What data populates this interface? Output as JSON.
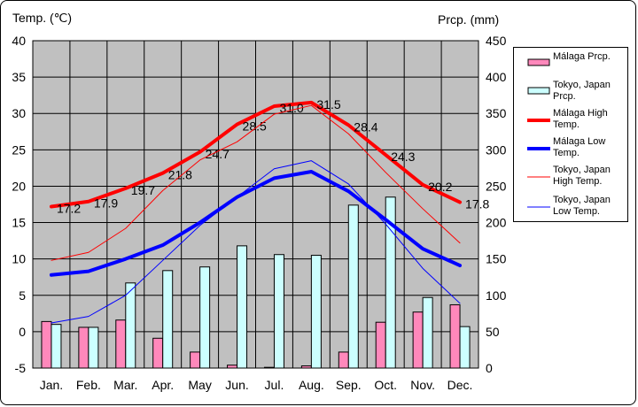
{
  "chart_data": {
    "type": "bar+line",
    "left_axis_title": "Temp. (℃)",
    "right_axis_title": "Prcp. (mm)",
    "categories": [
      "Jan.",
      "Feb.",
      "Mar.",
      "Apr.",
      "May",
      "Jun.",
      "Jul.",
      "Aug.",
      "Sep.",
      "Oct.",
      "Nov.",
      "Dec."
    ],
    "temp_axis": {
      "min": -5,
      "max": 40,
      "ticks": [
        40,
        35,
        30,
        25,
        20,
        15,
        10,
        5,
        0,
        -5
      ]
    },
    "prcp_axis": {
      "min": 0,
      "max": 450,
      "ticks": [
        450,
        400,
        350,
        300,
        250,
        200,
        150,
        100,
        50,
        0
      ]
    },
    "grid": true,
    "bar_series": [
      {
        "name": "Málaga Prcp.",
        "color": "#ff88bb",
        "values": [
          64,
          56,
          66,
          41,
          22,
          4,
          1,
          3,
          22,
          63,
          77,
          87
        ]
      },
      {
        "name": "Tokyo, Japan Prcp.",
        "color": "#ccffff",
        "values": [
          60,
          56,
          117,
          134,
          139,
          168,
          156,
          155,
          224,
          235,
          97,
          57
        ]
      }
    ],
    "line_series": [
      {
        "name": "Málaga High Temp.",
        "color": "#ff0000",
        "width": 4,
        "labels": true,
        "values": [
          17.2,
          17.9,
          19.7,
          21.8,
          24.7,
          28.5,
          31.0,
          31.5,
          28.4,
          24.3,
          20.2,
          17.8
        ],
        "label_text": [
          "17.2",
          "17.9",
          "19.7",
          "21.8",
          "24.7",
          "28.5",
          "31.0",
          "31.5",
          "28.4",
          "24.3",
          "20.2",
          "17.8"
        ]
      },
      {
        "name": "Málaga Low Temp.",
        "color": "#0000ff",
        "width": 4,
        "labels": false,
        "values": [
          7.8,
          8.3,
          10.0,
          11.9,
          15.0,
          18.5,
          21.1,
          22.0,
          19.3,
          15.4,
          11.4,
          9.1
        ]
      },
      {
        "name": "Tokyo, Japan High Temp.",
        "color": "#ff0000",
        "width": 1,
        "labels": false,
        "values": [
          9.8,
          10.9,
          14.2,
          19.4,
          23.6,
          26.1,
          29.9,
          31.1,
          27.2,
          21.9,
          16.9,
          12.2
        ]
      },
      {
        "name": "Tokyo, Japan Low Temp.",
        "color": "#0000ff",
        "width": 1,
        "labels": false,
        "values": [
          1.2,
          2.1,
          5.0,
          9.8,
          14.6,
          18.5,
          22.4,
          23.5,
          20.3,
          14.8,
          8.7,
          3.9
        ]
      }
    ],
    "legend": {
      "placement": "right",
      "items": [
        {
          "label": "Málaga Prcp.",
          "kind": "bar",
          "color": "#ff88bb"
        },
        {
          "label": "Tokyo, Japan\nPrcp.",
          "kind": "bar",
          "color": "#ccffff"
        },
        {
          "label": "Málaga High\nTemp.",
          "kind": "line",
          "color": "#ff0000",
          "width": 4
        },
        {
          "label": "Málaga Low\nTemp.",
          "kind": "line",
          "color": "#0000ff",
          "width": 4
        },
        {
          "label": "Tokyo, Japan\nHigh Temp.",
          "kind": "line",
          "color": "#ff0000",
          "width": 1
        },
        {
          "label": "Tokyo, Japan\nLow Temp.",
          "kind": "line",
          "color": "#0000ff",
          "width": 1
        }
      ]
    },
    "plot_background": "#c0c0c0"
  }
}
